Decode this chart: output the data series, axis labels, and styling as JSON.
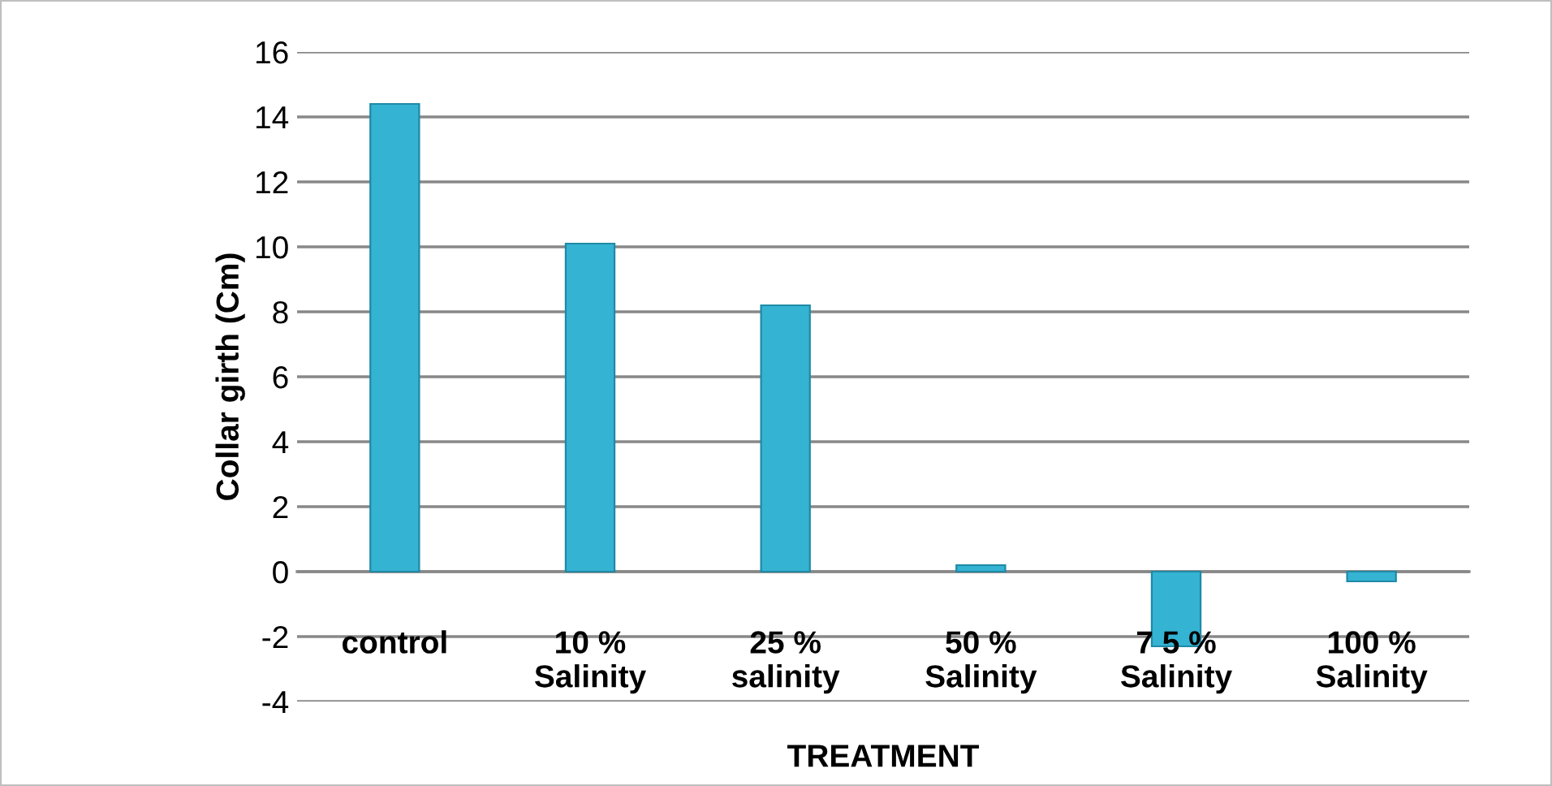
{
  "chart_data": {
    "type": "bar",
    "xlabel": "TREATMENT",
    "ylabel": "Collar girth (Cm)",
    "categories": [
      "control",
      "10 %\nSalinity",
      "25 %\nsalinity",
      "50 %\nSalinity",
      "7 5 %\nSalinity",
      "100 %\nSalinity"
    ],
    "values": [
      14.4,
      10.1,
      8.2,
      0.2,
      -2.3,
      -0.3
    ],
    "color": "#35b3d3",
    "ylim": [
      -4,
      16
    ],
    "yticks": [
      -4,
      -2,
      0,
      2,
      4,
      6,
      8,
      10,
      12,
      14,
      16
    ],
    "grid": "y",
    "legend": false
  }
}
